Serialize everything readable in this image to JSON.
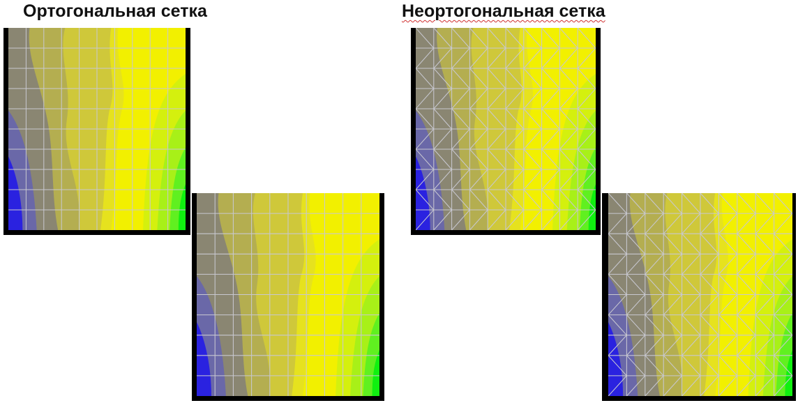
{
  "sections": [
    {
      "title": "Ортогональная сетка"
    },
    {
      "title": "Неортогональная сетка"
    }
  ]
}
